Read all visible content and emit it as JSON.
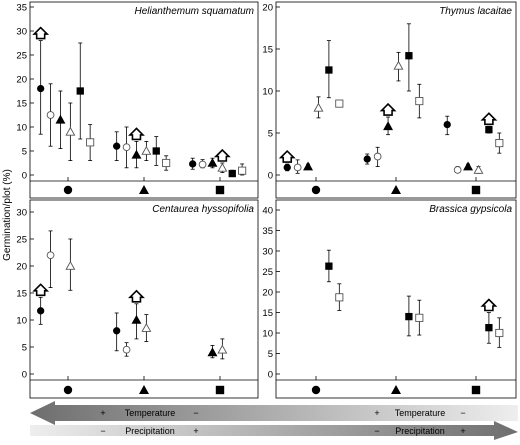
{
  "figure": {
    "ylabel": "Germination/plot (%)",
    "arrows": {
      "temperature": {
        "plus": "+",
        "label": "Temperature",
        "minus": "−"
      },
      "precipitation": {
        "minus": "−",
        "label": "Precipitation",
        "plus": "+"
      }
    }
  },
  "chart_data": [
    {
      "type": "scatter",
      "title": "Helianthemum squamatum",
      "ylim": [
        0,
        35
      ],
      "yticks": [
        0,
        5,
        10,
        15,
        20,
        25,
        30,
        35
      ],
      "categories": [
        "●",
        "▲",
        "■"
      ],
      "series": [
        {
          "marker": "circle-filled",
          "points": [
            {
              "group": 0,
              "slot": 0,
              "y": 18,
              "err_low": 8.5,
              "err_high": 28,
              "home": true
            },
            {
              "group": 1,
              "slot": 0,
              "y": 6.0,
              "err_low": 3.0,
              "err_high": 9.0
            },
            {
              "group": 2,
              "slot": 0,
              "y": 2.3,
              "err_low": 1.2,
              "err_high": 3.5
            }
          ]
        },
        {
          "marker": "circle-open",
          "points": [
            {
              "group": 0,
              "slot": 1,
              "y": 12.5,
              "err_low": 6.0,
              "err_high": 19.0
            },
            {
              "group": 1,
              "slot": 1,
              "y": 5.8,
              "err_low": 1.5,
              "err_high": 10.0
            },
            {
              "group": 2,
              "slot": 1,
              "y": 2.2,
              "err_low": 1.5,
              "err_high": 3.2
            }
          ]
        },
        {
          "marker": "triangle-filled",
          "points": [
            {
              "group": 0,
              "slot": 2,
              "y": 11.5,
              "err_low": 5.5,
              "err_high": 17.5
            },
            {
              "group": 1,
              "slot": 2,
              "y": 4.2,
              "err_low": 1.5,
              "err_high": 7.0,
              "home": true
            },
            {
              "group": 2,
              "slot": 2,
              "y": 2.5,
              "err_low": 1.5,
              "err_high": 3.5
            }
          ]
        },
        {
          "marker": "triangle-open",
          "points": [
            {
              "group": 0,
              "slot": 3,
              "y": 9.0,
              "err_low": 3.0,
              "err_high": 15.0
            },
            {
              "group": 1,
              "slot": 3,
              "y": 5.0,
              "err_low": 3.0,
              "err_high": 7.0
            },
            {
              "group": 2,
              "slot": 3,
              "y": 1.5,
              "err_low": 0.5,
              "err_high": 2.5,
              "home": true
            }
          ]
        },
        {
          "marker": "square-filled",
          "points": [
            {
              "group": 0,
              "slot": 4,
              "y": 17.5,
              "err_low": 7.5,
              "err_high": 27.5
            },
            {
              "group": 1,
              "slot": 4,
              "y": 5.0,
              "err_low": 2.0,
              "err_high": 8.0
            },
            {
              "group": 2,
              "slot": 4,
              "y": 0.3,
              "err_low": 0.0,
              "err_high": 1.0
            }
          ]
        },
        {
          "marker": "square-open",
          "points": [
            {
              "group": 0,
              "slot": 5,
              "y": 6.8,
              "err_low": 3.0,
              "err_high": 10.5
            },
            {
              "group": 1,
              "slot": 5,
              "y": 2.5,
              "err_low": 1.0,
              "err_high": 4.0
            },
            {
              "group": 2,
              "slot": 5,
              "y": 0.9,
              "err_low": 0.0,
              "err_high": 2.3
            }
          ]
        }
      ]
    },
    {
      "type": "scatter",
      "title": "Thymus lacaitae",
      "ylim": [
        0,
        20
      ],
      "yticks": [
        0,
        5,
        10,
        15,
        20
      ],
      "categories": [
        "●",
        "▲",
        "■"
      ],
      "series": [
        {
          "marker": "circle-filled",
          "points": [
            {
              "group": 0,
              "slot": 0,
              "y": 0.9,
              "err_low": 0.5,
              "err_high": 1.3,
              "home": true
            },
            {
              "group": 1,
              "slot": 0,
              "y": 1.9,
              "err_low": 1.3,
              "err_high": 2.5
            },
            {
              "group": 2,
              "slot": 0,
              "y": 6.0,
              "err_low": 4.8,
              "err_high": 7.0
            }
          ]
        },
        {
          "marker": "circle-open",
          "points": [
            {
              "group": 0,
              "slot": 1,
              "y": 0.9,
              "err_low": 0.2,
              "err_high": 1.8
            },
            {
              "group": 1,
              "slot": 1,
              "y": 2.2,
              "err_low": 1.0,
              "err_high": 3.3
            },
            {
              "group": 2,
              "slot": 1,
              "y": 0.6,
              "err_low": 0.3,
              "err_high": 1.0
            }
          ]
        },
        {
          "marker": "triangle-filled",
          "points": [
            {
              "group": 0,
              "slot": 2,
              "y": 1.0,
              "err_low": 0.7,
              "err_high": 1.3
            },
            {
              "group": 1,
              "slot": 2,
              "y": 5.8,
              "err_low": 4.8,
              "err_high": 6.9,
              "home": true
            },
            {
              "group": 2,
              "slot": 2,
              "y": 1.0,
              "err_low": 0.7,
              "err_high": 1.3
            }
          ]
        },
        {
          "marker": "triangle-open",
          "points": [
            {
              "group": 0,
              "slot": 3,
              "y": 8.0,
              "err_low": 6.8,
              "err_high": 9.3
            },
            {
              "group": 1,
              "slot": 3,
              "y": 13.0,
              "err_low": 11.2,
              "err_high": 14.6
            },
            {
              "group": 2,
              "slot": 3,
              "y": 0.6,
              "err_low": 0.2,
              "err_high": 1.0
            }
          ]
        },
        {
          "marker": "square-filled",
          "points": [
            {
              "group": 0,
              "slot": 4,
              "y": 12.5,
              "err_low": 9.2,
              "err_high": 16.0
            },
            {
              "group": 1,
              "slot": 4,
              "y": 14.2,
              "err_low": 10.0,
              "err_high": 18.0
            },
            {
              "group": 2,
              "slot": 4,
              "y": 5.4,
              "err_low": 5.0,
              "err_high": 5.8,
              "home": true
            }
          ]
        },
        {
          "marker": "square-open",
          "points": [
            {
              "group": 0,
              "slot": 5,
              "y": 8.5,
              "err_low": 8.2,
              "err_high": 8.8
            },
            {
              "group": 1,
              "slot": 5,
              "y": 8.8,
              "err_low": 6.8,
              "err_high": 10.8
            },
            {
              "group": 2,
              "slot": 5,
              "y": 3.8,
              "err_low": 2.6,
              "err_high": 5.0
            }
          ]
        }
      ]
    },
    {
      "type": "scatter",
      "title": "Centaurea hyssopifolia",
      "ylim": [
        0,
        30
      ],
      "yticks": [
        0,
        5,
        10,
        15,
        20,
        25,
        30
      ],
      "categories": [
        "●",
        "▲",
        "■"
      ],
      "series": [
        {
          "marker": "circle-filled",
          "points": [
            {
              "group": 0,
              "slot": 0,
              "y": 11.7,
              "err_low": 9.2,
              "err_high": 14.2,
              "home": true
            },
            {
              "group": 1,
              "slot": 0,
              "y": 8.0,
              "err_low": 4.3,
              "err_high": 11.3
            }
          ]
        },
        {
          "marker": "circle-open",
          "points": [
            {
              "group": 0,
              "slot": 1,
              "y": 22.0,
              "err_low": 16.0,
              "err_high": 26.5
            },
            {
              "group": 1,
              "slot": 1,
              "y": 4.5,
              "err_low": 3.3,
              "err_high": 5.8
            }
          ]
        },
        {
          "marker": "triangle-filled",
          "points": [
            {
              "group": 1,
              "slot": 2,
              "y": 10.0,
              "err_low": 6.5,
              "err_high": 13.0,
              "home": true
            },
            {
              "group": 2,
              "slot": 2,
              "y": 4.0,
              "err_low": 3.0,
              "err_high": 5.3
            }
          ]
        },
        {
          "marker": "triangle-open",
          "points": [
            {
              "group": 0,
              "slot": 3,
              "y": 20.0,
              "err_low": 15.5,
              "err_high": 25.0
            },
            {
              "group": 1,
              "slot": 3,
              "y": 8.5,
              "err_low": 6.0,
              "err_high": 11.0
            },
            {
              "group": 2,
              "slot": 3,
              "y": 4.5,
              "err_low": 2.8,
              "err_high": 6.5
            }
          ]
        }
      ]
    },
    {
      "type": "scatter",
      "title": "Brassica gypsicola",
      "ylim": [
        0,
        40
      ],
      "yticks": [
        0,
        5,
        10,
        15,
        20,
        25,
        30,
        35,
        40
      ],
      "categories": [
        "●",
        "▲",
        "■"
      ],
      "series": [
        {
          "marker": "square-filled",
          "points": [
            {
              "group": 0,
              "slot": 4,
              "y": 26.3,
              "err_low": 22.5,
              "err_high": 30.2
            },
            {
              "group": 1,
              "slot": 4,
              "y": 14.0,
              "err_low": 9.3,
              "err_high": 19.0
            },
            {
              "group": 2,
              "slot": 4,
              "y": 11.3,
              "err_low": 7.5,
              "err_high": 15.0,
              "home": true
            }
          ]
        },
        {
          "marker": "square-open",
          "points": [
            {
              "group": 0,
              "slot": 5,
              "y": 18.7,
              "err_low": 15.5,
              "err_high": 22.0
            },
            {
              "group": 1,
              "slot": 5,
              "y": 13.7,
              "err_low": 9.5,
              "err_high": 18.0
            },
            {
              "group": 2,
              "slot": 5,
              "y": 10.0,
              "err_low": 6.5,
              "err_high": 13.7
            }
          ]
        }
      ]
    }
  ]
}
